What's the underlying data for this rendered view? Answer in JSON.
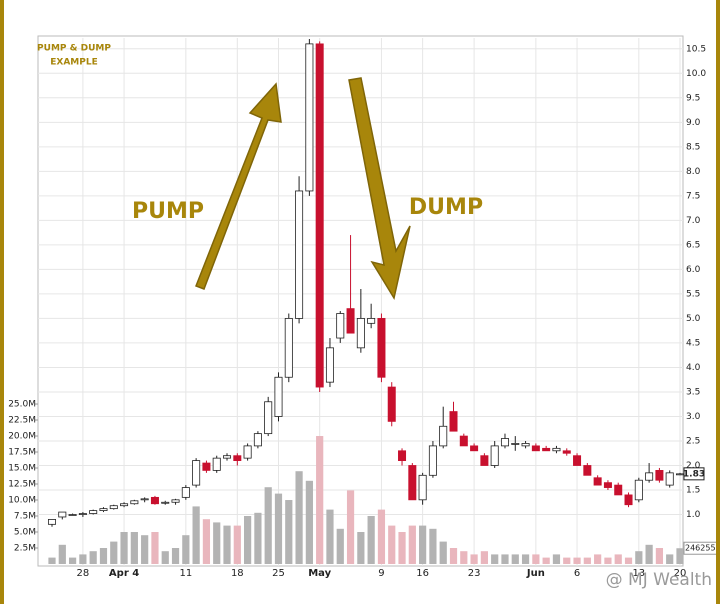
{
  "chart_data": {
    "type": "candlestick",
    "annotations": {
      "box": [
        "PUMP & DUMP",
        "EXAMPLE"
      ],
      "pump": "PUMP",
      "dump": "DUMP",
      "watermark": "@ MJ Wealth"
    },
    "categories": [
      null,
      null,
      null,
      "28",
      null,
      null,
      null,
      "Apr 4",
      null,
      null,
      null,
      null,
      null,
      "11",
      null,
      null,
      null,
      null,
      "18",
      null,
      null,
      null,
      "25",
      null,
      null,
      null,
      "May",
      null,
      null,
      null,
      null,
      null,
      "9",
      null,
      null,
      null,
      "16",
      null,
      null,
      null,
      null,
      "23",
      null,
      null,
      null,
      null,
      null,
      "Jun",
      null,
      null,
      null,
      "6",
      null,
      null,
      null,
      null,
      null,
      "13",
      null,
      null,
      null,
      "20"
    ],
    "open": [
      0.8,
      0.95,
      1.0,
      1.0,
      1.02,
      1.08,
      1.12,
      1.18,
      1.22,
      1.3,
      1.35,
      1.25,
      1.25,
      1.35,
      1.6,
      2.05,
      1.9,
      2.15,
      2.2,
      2.15,
      2.4,
      2.65,
      3.0,
      3.8,
      5.0,
      7.6,
      10.6,
      3.7,
      4.6,
      5.2,
      4.4,
      4.9,
      5.0,
      3.6,
      2.3,
      2.0,
      1.3,
      1.8,
      2.4,
      3.1,
      2.6,
      2.4,
      2.2,
      2.0,
      2.4,
      2.45,
      2.4,
      2.4,
      2.35,
      2.3,
      2.3,
      2.2,
      2.0,
      1.75,
      1.65,
      1.6,
      1.4,
      1.3,
      1.7,
      1.9,
      1.6,
      1.83
    ],
    "high": [
      0.9,
      1.05,
      1.02,
      1.05,
      1.1,
      1.15,
      1.2,
      1.25,
      1.3,
      1.35,
      1.38,
      1.28,
      1.32,
      1.6,
      2.15,
      2.1,
      2.2,
      2.25,
      2.25,
      2.45,
      2.7,
      3.4,
      3.9,
      5.1,
      7.9,
      10.7,
      10.65,
      4.6,
      5.15,
      6.7,
      5.6,
      5.3,
      5.1,
      3.7,
      2.35,
      2.05,
      1.85,
      2.5,
      3.2,
      3.3,
      2.65,
      2.45,
      2.25,
      2.5,
      2.65,
      2.6,
      2.5,
      2.45,
      2.4,
      2.4,
      2.35,
      2.25,
      2.05,
      1.8,
      1.7,
      1.65,
      1.45,
      1.75,
      2.05,
      1.95,
      1.9,
      1.85
    ],
    "low": [
      0.75,
      0.9,
      0.98,
      0.95,
      1.0,
      1.05,
      1.1,
      1.15,
      1.2,
      1.25,
      1.2,
      1.2,
      1.2,
      1.3,
      1.55,
      1.85,
      1.85,
      2.1,
      2.0,
      2.1,
      2.35,
      2.6,
      2.9,
      3.7,
      4.9,
      7.5,
      3.5,
      3.6,
      4.5,
      4.7,
      4.3,
      4.8,
      3.7,
      2.8,
      2.0,
      1.3,
      1.2,
      1.75,
      2.35,
      2.7,
      2.4,
      2.3,
      2.0,
      1.95,
      2.35,
      2.3,
      2.35,
      2.3,
      2.3,
      2.25,
      2.2,
      2.0,
      1.8,
      1.6,
      1.5,
      1.4,
      1.15,
      1.25,
      1.65,
      1.65,
      1.55,
      1.8
    ],
    "close": [
      0.9,
      1.05,
      1.0,
      1.02,
      1.08,
      1.12,
      1.18,
      1.22,
      1.28,
      1.32,
      1.22,
      1.25,
      1.3,
      1.55,
      2.1,
      1.9,
      2.15,
      2.2,
      2.1,
      2.4,
      2.65,
      3.3,
      3.8,
      5.0,
      7.6,
      10.6,
      3.6,
      4.4,
      5.1,
      4.7,
      5.0,
      5.0,
      3.8,
      2.9,
      2.1,
      1.3,
      1.8,
      2.4,
      2.8,
      2.7,
      2.4,
      2.3,
      2.0,
      2.4,
      2.55,
      2.45,
      2.45,
      2.3,
      2.3,
      2.35,
      2.25,
      2.0,
      1.8,
      1.6,
      1.55,
      1.4,
      1.2,
      1.7,
      1.85,
      1.7,
      1.85,
      1.83
    ],
    "last_price_label": "1.83",
    "volume": [
      1000000,
      3000000,
      1000000,
      1500000,
      2000000,
      2500000,
      3500000,
      5000000,
      5000000,
      4500000,
      5000000,
      2000000,
      2500000,
      4500000,
      9000000,
      7000000,
      6500000,
      6000000,
      6000000,
      7500000,
      8000000,
      12000000,
      11000000,
      10000000,
      14500000,
      13000000,
      20000000,
      8500000,
      5500000,
      11500000,
      5000000,
      7500000,
      8500000,
      6000000,
      5000000,
      6000000,
      6000000,
      5500000,
      3500000,
      2500000,
      2000000,
      1500000,
      2000000,
      1500000,
      1500000,
      1500000,
      1500000,
      1500000,
      1000000,
      1500000,
      1000000,
      1000000,
      1000000,
      1500000,
      1000000,
      1500000,
      1000000,
      2000000,
      3000000,
      2500000,
      1500000,
      2462557
    ],
    "ylim": [
      -0.05,
      10.72
    ],
    "yticks": [
      {
        "value": 1,
        "label": "1.0"
      },
      1.5,
      {
        "value": 2,
        "label": "2.0"
      },
      2.5,
      {
        "value": 3,
        "label": "3.0"
      },
      3.5,
      {
        "value": 4,
        "label": "4.0"
      },
      4.5,
      {
        "value": 5,
        "label": "5.0"
      },
      5.5,
      {
        "value": 6,
        "label": "6.0"
      },
      6.5,
      {
        "value": 7,
        "label": "7.0"
      },
      7.5,
      {
        "value": 8,
        "label": "8.0"
      },
      8.5,
      {
        "value": 9,
        "label": "9.0"
      },
      9.5,
      {
        "value": 10,
        "label": "10.0"
      },
      10.5
    ],
    "vlim": [
      0,
      82200000
    ],
    "vticks": [
      {
        "value": 2500000,
        "label": "2.5M"
      },
      {
        "value": 5000000,
        "label": "5.0M"
      },
      {
        "value": 7500000,
        "label": "7.5M"
      },
      {
        "value": 10000000,
        "label": "10.0M"
      },
      {
        "value": 12500000,
        "label": "12.5M"
      },
      {
        "value": 15000000,
        "label": "15.0M"
      },
      {
        "value": 17500000,
        "label": "17.5M"
      },
      {
        "value": 20000000,
        "label": "20.0M"
      },
      {
        "value": 22500000,
        "label": "22.5M"
      },
      {
        "value": 25000000,
        "label": "25.0M"
      }
    ],
    "colors": {
      "up": "#ffffff",
      "down": "#c8102e",
      "vol_up": "#b3b3b3",
      "vol_down": "#e9b6bd",
      "accent": "#a8860b"
    },
    "grid": true
  }
}
